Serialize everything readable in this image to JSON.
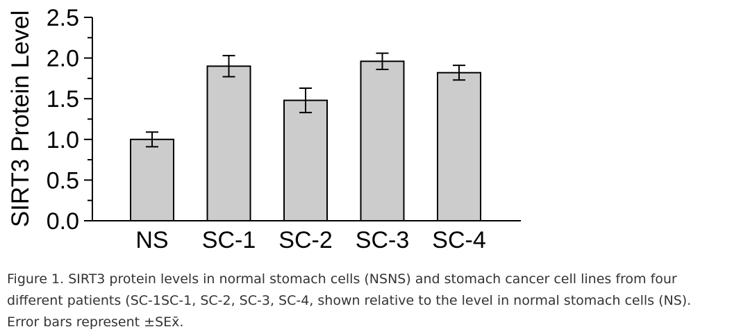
{
  "chart_data": {
    "type": "bar",
    "title": "",
    "xlabel": "",
    "ylabel": "SIRT3 Protein Level",
    "ylim": [
      0,
      2.5
    ],
    "yticks": [
      "0.0",
      "0.5",
      "1.0",
      "1.5",
      "2.0",
      "2.5"
    ],
    "categories": [
      "NS",
      "SC-1",
      "SC-2",
      "SC-3",
      "SC-4"
    ],
    "values": [
      1.0,
      1.9,
      1.48,
      1.96,
      1.82
    ],
    "error": [
      0.09,
      0.13,
      0.15,
      0.1,
      0.09
    ],
    "bar_color": "#cccccc",
    "grid": false,
    "legend": "none"
  },
  "caption": {
    "line1": "Figure 1. SIRT3 protein levels in normal stomach cells (NSNS) and stomach cancer cell lines from four",
    "line2": "different patients (SC-1SC-1, SC-2, SC-3, SC-4, shown relative to the level in normal stomach cells (NS).",
    "line3": "Error bars represent ±SEx̄."
  }
}
